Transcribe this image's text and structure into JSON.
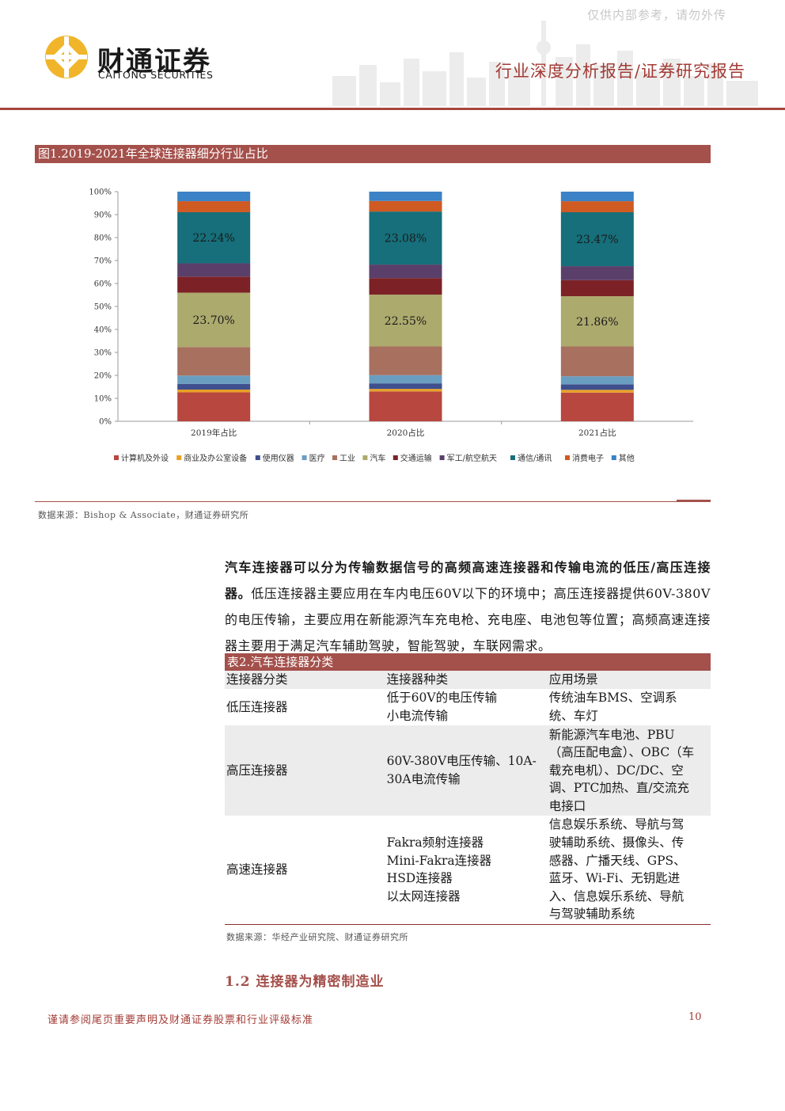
{
  "header": {
    "watermark": "仅供内部参考，请勿外传",
    "logo_cn": "财通证券",
    "logo_en": "CAITONG SECURITIES",
    "report_type": "行业深度分析报告/证券研究报告"
  },
  "figure": {
    "caption": "图1.2019-2021年全球连接器细分行业占比",
    "source": "数据来源：Bishop & Associate，财通证券研究所"
  },
  "chart_data": {
    "type": "bar",
    "stacked": true,
    "percent": true,
    "categories": [
      "2019年占比",
      "2020占比",
      "2021占比"
    ],
    "yticks": [
      "0%",
      "10%",
      "20%",
      "30%",
      "40%",
      "50%",
      "60%",
      "70%",
      "80%",
      "90%",
      "100%"
    ],
    "ylim": [
      0,
      100
    ],
    "legend_position": "bottom",
    "series": [
      {
        "name": "计算机及外设",
        "color": "#b7473f",
        "values": [
          12.6,
          13.0,
          12.5
        ]
      },
      {
        "name": "商业及办公室设备",
        "color": "#e8a125",
        "values": [
          1.2,
          1.1,
          1.2
        ]
      },
      {
        "name": "使用仪器",
        "color": "#3f4f8e",
        "values": [
          2.5,
          2.4,
          2.4
        ]
      },
      {
        "name": "医疗",
        "color": "#6a9ec0",
        "values": [
          3.6,
          3.6,
          3.5
        ]
      },
      {
        "name": "工业",
        "color": "#a8705e",
        "values": [
          12.4,
          12.5,
          13.0
        ]
      },
      {
        "name": "汽车",
        "color": "#adaa6e",
        "values": [
          23.7,
          22.55,
          21.86
        ]
      },
      {
        "name": "交通运输",
        "color": "#7c2226",
        "values": [
          7.0,
          7.2,
          7.0
        ]
      },
      {
        "name": "军工/航空航天",
        "color": "#5a3f6a",
        "values": [
          5.8,
          5.9,
          6.1
        ]
      },
      {
        "name": "通信/通讯",
        "color": "#166f7a",
        "values": [
          22.24,
          23.08,
          23.47
        ]
      },
      {
        "name": "消费电子",
        "color": "#cf5a22",
        "values": [
          4.8,
          4.6,
          4.8
        ]
      },
      {
        "name": "其他",
        "color": "#3b82c6",
        "values": [
          4.16,
          4.07,
          4.17
        ]
      }
    ],
    "data_labels": [
      {
        "series": "汽车",
        "labels": [
          "23.70%",
          "22.55%",
          "21.86%"
        ]
      },
      {
        "series": "通信/通讯",
        "labels": [
          "22.24%",
          "23.08%",
          "23.47%"
        ]
      }
    ]
  },
  "body": {
    "para_bold": "汽车连接器可以分为传输数据信号的高频高速连接器和传输电流的低压/高压连接器。",
    "para_rest": "低压连接器主要应用在车内电压60V以下的环境中；高压连接器提供60V-380V的电压传输，主要应用在新能源汽车充电枪、充电座、电池包等位置；高频高速连接器主要用于满足汽车辅助驾驶，智能驾驶，车联网需求。"
  },
  "table": {
    "caption": "表2.汽车连接器分类",
    "headers": [
      "连接器分类",
      "连接器种类",
      "应用场景"
    ],
    "rows": [
      {
        "cat": "低压连接器",
        "kinds": [
          "低于60V的电压传输",
          "小电流传输"
        ],
        "scenes": [
          "传统油车BMS、空调系",
          "统、车灯"
        ]
      },
      {
        "cat": "高压连接器",
        "kinds": [
          "60V-380V电压传输、10A-",
          "30A电流传输"
        ],
        "scenes": [
          "新能源汽车电池、PBU",
          "（高压配电盒）、OBC（车",
          "载充电机）、DC/DC、空",
          "调、PTC加热、直/交流充",
          "电接口"
        ]
      },
      {
        "cat": "高速连接器",
        "kinds": [
          "Fakra频射连接器",
          "Mini-Fakra连接器",
          "HSD连接器",
          "以太网连接器"
        ],
        "scenes": [
          "信息娱乐系统、导航与驾",
          "驶辅助系统、摄像头、传",
          "感器、广播天线、GPS、",
          "蓝牙、Wi-Fi、无钥匙进",
          "入、信息娱乐系统、导航",
          "与驾驶辅助系统"
        ]
      }
    ],
    "source": "数据来源：华经产业研究院、财通证券研究所"
  },
  "section": {
    "title": "1.2  连接器为精密制造业"
  },
  "footer": {
    "disclaimer": "谨请参阅尾页重要声明及财通证券股票和行业评级标准",
    "page": "10"
  }
}
